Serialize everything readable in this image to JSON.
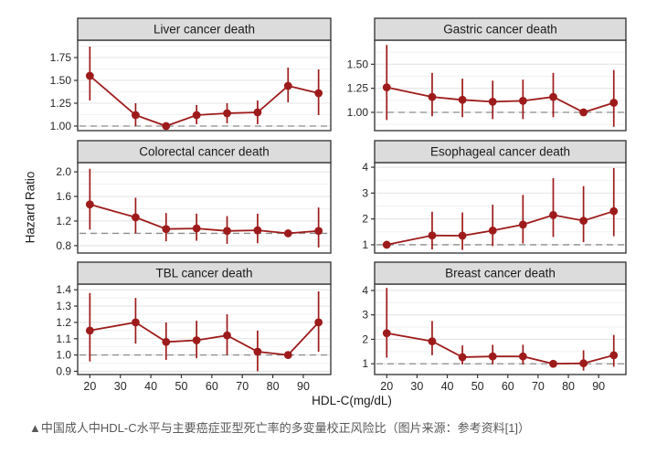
{
  "figure": {
    "kind": "faceted-errorbar-chart",
    "panels_layout": "2 columns x 3 rows"
  },
  "axes": {
    "xlabel": "HDL-C(mg/dL)",
    "ylabel": "Hazard Ratio",
    "xticks": [
      20,
      30,
      40,
      50,
      60,
      70,
      80,
      90
    ],
    "xlim": [
      16,
      99
    ]
  },
  "caption": {
    "text": "▲中国成人中HDL-C水平与主要癌症亚型死亡率的多变量校正风险比（图片来源：参考资料[1]）"
  },
  "style": {
    "series_color": "#9e1b1b",
    "strip_fill": "#dcdcdc",
    "strip_border": "#3c3c3c",
    "panel_border": "#3c3c3c",
    "grid_major": "#e4e4e4",
    "grid_minor": "#f1f1f1",
    "ref_line_color": "#8c8c8c",
    "tick_color": "#333333",
    "tick_label_color": "#262626",
    "strip_text_color": "#1a1a1a"
  },
  "chart_data": [
    {
      "type": "line",
      "title": "Liver cancer death",
      "x": [
        20,
        35,
        45,
        55,
        65,
        75,
        85,
        95
      ],
      "hr": [
        1.55,
        1.12,
        1.0,
        1.12,
        1.14,
        1.15,
        1.44,
        1.36
      ],
      "lo": [
        1.28,
        1.0,
        1.0,
        1.02,
        1.03,
        1.02,
        1.26,
        1.12
      ],
      "hi": [
        1.87,
        1.25,
        1.0,
        1.23,
        1.25,
        1.28,
        1.64,
        1.62
      ],
      "yticks": [
        1.0,
        1.25,
        1.5,
        1.75
      ],
      "ytick_labels": [
        "1.00",
        "1.25",
        "1.50",
        "1.75"
      ],
      "ylim": [
        0.95,
        1.94
      ],
      "ref_y": 1.0
    },
    {
      "type": "line",
      "title": "Gastric cancer death",
      "x": [
        20,
        35,
        45,
        55,
        65,
        75,
        85,
        95
      ],
      "hr": [
        1.26,
        1.16,
        1.13,
        1.11,
        1.12,
        1.16,
        1.0,
        1.1
      ],
      "lo": [
        0.92,
        0.96,
        0.95,
        0.93,
        0.93,
        0.95,
        1.0,
        0.85
      ],
      "hi": [
        1.7,
        1.41,
        1.35,
        1.33,
        1.34,
        1.41,
        1.0,
        1.44
      ],
      "yticks": [
        1.0,
        1.25,
        1.5
      ],
      "ytick_labels": [
        "1.00",
        "1.25",
        "1.50"
      ],
      "ylim": [
        0.81,
        1.75
      ],
      "ref_y": 1.0
    },
    {
      "type": "line",
      "title": "Colorectal cancer death",
      "x": [
        20,
        35,
        45,
        55,
        65,
        75,
        85,
        95
      ],
      "hr": [
        1.47,
        1.26,
        1.07,
        1.08,
        1.04,
        1.05,
        1.0,
        1.04
      ],
      "lo": [
        1.06,
        1.0,
        0.87,
        0.88,
        0.83,
        0.84,
        1.0,
        0.77
      ],
      "hi": [
        2.05,
        1.58,
        1.33,
        1.32,
        1.28,
        1.32,
        1.0,
        1.42
      ],
      "yticks": [
        0.8,
        1.2,
        1.6,
        2.0
      ],
      "ytick_labels": [
        "0.8",
        "1.2",
        "1.6",
        "2.0"
      ],
      "ylim": [
        0.68,
        2.15
      ],
      "ref_y": 1.0
    },
    {
      "type": "line",
      "title": "Esophageal cancer death",
      "x": [
        20,
        35,
        45,
        55,
        65,
        75,
        85,
        95
      ],
      "hr": [
        1.0,
        1.36,
        1.35,
        1.55,
        1.78,
        2.15,
        1.93,
        2.3
      ],
      "lo": [
        1.0,
        0.82,
        0.8,
        0.95,
        1.05,
        1.3,
        1.1,
        1.33
      ],
      "hi": [
        1.0,
        2.28,
        2.25,
        2.55,
        2.93,
        3.58,
        3.27,
        3.97
      ],
      "yticks": [
        1,
        2,
        3,
        4
      ],
      "ytick_labels": [
        "1",
        "2",
        "3",
        "4"
      ],
      "ylim": [
        0.68,
        4.18
      ],
      "ref_y": 1.0
    },
    {
      "type": "line",
      "title": "TBL cancer death",
      "x": [
        20,
        35,
        45,
        55,
        65,
        75,
        85,
        95
      ],
      "hr": [
        1.15,
        1.2,
        1.08,
        1.09,
        1.12,
        1.02,
        1.0,
        1.2
      ],
      "lo": [
        0.96,
        1.07,
        0.97,
        0.98,
        1.0,
        0.9,
        1.0,
        1.02
      ],
      "hi": [
        1.38,
        1.35,
        1.2,
        1.21,
        1.25,
        1.15,
        1.0,
        1.39
      ],
      "yticks": [
        0.9,
        1.0,
        1.1,
        1.2,
        1.3,
        1.4
      ],
      "ytick_labels": [
        "0.9",
        "1.0",
        "1.1",
        "1.2",
        "1.3",
        "1.4"
      ],
      "ylim": [
        0.88,
        1.435
      ],
      "ref_y": 1.0
    },
    {
      "type": "line",
      "title": "Breast cancer death",
      "x": [
        20,
        35,
        45,
        55,
        65,
        75,
        85,
        95
      ],
      "hr": [
        2.25,
        1.92,
        1.27,
        1.3,
        1.3,
        1.0,
        1.02,
        1.35
      ],
      "lo": [
        1.25,
        1.35,
        0.97,
        0.97,
        0.97,
        1.0,
        0.72,
        0.88
      ],
      "hi": [
        4.1,
        2.75,
        1.75,
        1.78,
        1.78,
        1.0,
        1.55,
        2.18
      ],
      "yticks": [
        1,
        2,
        3,
        4
      ],
      "ytick_labels": [
        "1",
        "2",
        "3",
        "4"
      ],
      "ylim": [
        0.56,
        4.26
      ],
      "ref_y": 1.0
    }
  ]
}
